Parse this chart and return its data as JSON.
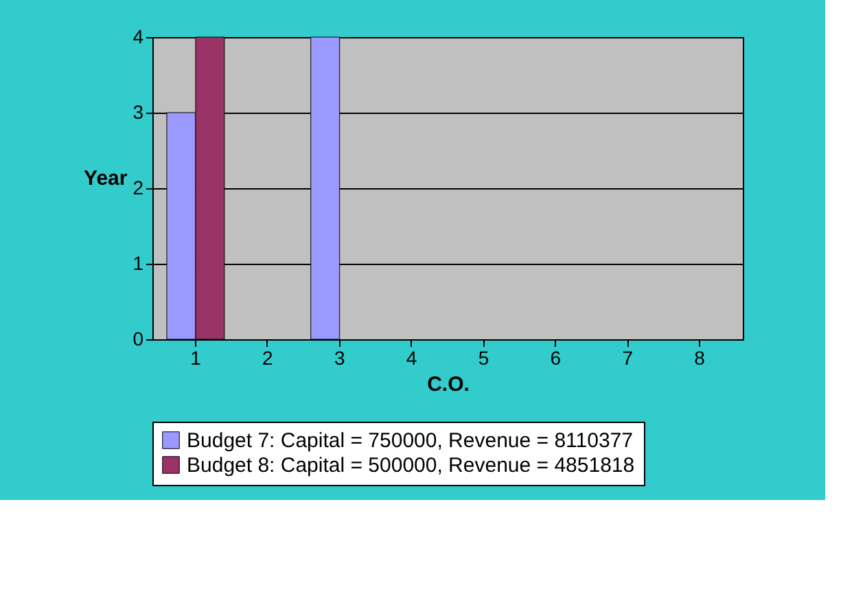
{
  "chart_data": {
    "type": "bar",
    "xlabel": "C.O.",
    "ylabel": "Year",
    "categories": [
      "1",
      "2",
      "3",
      "4",
      "5",
      "6",
      "7",
      "8"
    ],
    "series": [
      {
        "name": "Budget 7: Capital = 750000, Revenue = 8110377",
        "color": "#9999ff",
        "values": [
          3,
          null,
          4,
          null,
          null,
          null,
          null,
          null
        ]
      },
      {
        "name": "Budget 8: Capital = 500000, Revenue = 4851818",
        "color": "#993366",
        "values": [
          4,
          null,
          null,
          null,
          null,
          null,
          null,
          null
        ]
      }
    ],
    "ylim": [
      0,
      4
    ],
    "yticks": [
      0,
      1,
      2,
      3,
      4
    ],
    "grid": "y",
    "legend": "bottom"
  }
}
